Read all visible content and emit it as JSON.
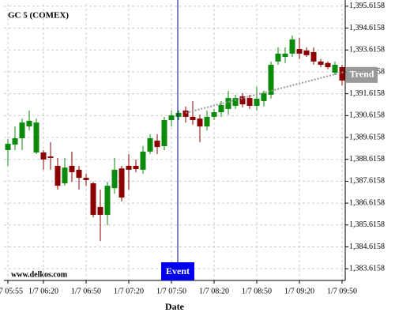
{
  "chart_data": {
    "type": "candlestick",
    "title": "GC 5 (COMEX)",
    "watermark": "www.delkos.com",
    "x_label": "Date",
    "categories": [
      "1/7 05:55",
      null,
      null,
      null,
      null,
      "1/7 06:20",
      null,
      null,
      null,
      null,
      null,
      "1/7 06:50",
      null,
      null,
      null,
      null,
      null,
      "1/7 07:20",
      null,
      null,
      null,
      null,
      null,
      "1/7 07:50",
      null,
      null,
      null,
      null,
      null,
      "1/7 08:20",
      null,
      null,
      null,
      null,
      null,
      "1/7 08:50",
      null,
      null,
      null,
      null,
      null,
      "1/7 09:20",
      null,
      null,
      null,
      null,
      null,
      "1/7 09:50"
    ],
    "open": [
      1389.04,
      1389.29,
      1389.58,
      1390.12,
      1388.93,
      1388.93,
      1388.75,
      1388.32,
      1387.52,
      1388.32,
      1388.14,
      1387.77,
      1387.52,
      1386.44,
      1386.08,
      1387.3,
      1388.2,
      1388.32,
      1388.32,
      1388.14,
      1388.97,
      1389.47,
      1389.22,
      1390.41,
      1390.56,
      1390.85,
      1390.56,
      1390.48,
      1390.12,
      1390.56,
      1390.77,
      1390.92,
      1391.06,
      1391.5,
      1391.42,
      1391.06,
      1391.28,
      1391.57,
      1393.09,
      1393.3,
      1393.45,
      1393.66,
      1393.59,
      1393.52,
      1393.09,
      1393.02,
      1392.58,
      1392.83
    ],
    "high": [
      1389.54,
      1390.12,
      1390.48,
      1390.85,
      1390.48,
      1389.04,
      1389.4,
      1388.68,
      1388.68,
      1388.97,
      1388.32,
      1387.96,
      1387.59,
      1387.23,
      1387.59,
      1388.68,
      1388.32,
      1388.86,
      1388.61,
      1389.22,
      1389.76,
      1389.76,
      1390.56,
      1390.85,
      1390.85,
      1391.03,
      1391.28,
      1390.66,
      1390.85,
      1390.92,
      1391.28,
      1391.75,
      1391.57,
      1391.64,
      1391.57,
      1391.93,
      1391.75,
      1393.09,
      1393.74,
      1393.74,
      1394.28,
      1394.17,
      1393.74,
      1393.74,
      1393.2,
      1393.09,
      1393.09,
      1392.94
    ],
    "low": [
      1388.32,
      1389.04,
      1389.04,
      1389.94,
      1388.86,
      1388.14,
      1388.14,
      1387.23,
      1387.41,
      1387.59,
      1387.23,
      1387.41,
      1385.97,
      1384.88,
      1385.61,
      1387.05,
      1386.69,
      1387.23,
      1388.03,
      1387.96,
      1388.86,
      1388.86,
      1389.04,
      1390.12,
      1390.41,
      1390.3,
      1390.2,
      1389.4,
      1389.94,
      1390.41,
      1390.56,
      1390.66,
      1390.92,
      1390.99,
      1390.92,
      1390.85,
      1391.03,
      1391.39,
      1392.94,
      1393.02,
      1393.3,
      1393.2,
      1393.3,
      1392.94,
      1392.83,
      1392.74,
      1392.47,
      1392.0
    ],
    "close": [
      1389.33,
      1389.58,
      1390.3,
      1390.38,
      1390.3,
      1388.61,
      1388.68,
      1387.41,
      1388.24,
      1388.03,
      1387.77,
      1387.67,
      1386.08,
      1386.08,
      1387.41,
      1388.14,
      1386.87,
      1388.14,
      1388.17,
      1388.97,
      1389.58,
      1389.18,
      1390.41,
      1390.63,
      1390.74,
      1390.56,
      1390.41,
      1390.12,
      1390.56,
      1390.77,
      1391.1,
      1391.42,
      1391.42,
      1391.13,
      1391.06,
      1391.39,
      1391.64,
      1392.94,
      1393.45,
      1393.45,
      1394.1,
      1393.45,
      1393.38,
      1393.09,
      1392.94,
      1392.83,
      1392.94,
      1392.22
    ],
    "up_color": "#0c8a0c",
    "down_color": "#8b0000",
    "ylim": [
      1383.08,
      1395.72
    ],
    "yticks": [
      {
        "value": 1383.6158,
        "label": "1,383.6158"
      },
      {
        "value": 1384.6158,
        "label": "1,384.6158"
      },
      {
        "value": 1385.6158,
        "label": "1,385.6158"
      },
      {
        "value": 1386.6158,
        "label": "1,386.6158"
      },
      {
        "value": 1387.6158,
        "label": "1,387.6158"
      },
      {
        "value": 1388.6158,
        "label": "1,388.6158"
      },
      {
        "value": 1389.6158,
        "label": "1,389.6158"
      },
      {
        "value": 1390.6158,
        "label": "1,390.6158"
      },
      {
        "value": 1391.6158,
        "label": "1,391.6158"
      },
      {
        "value": 1392.6158,
        "label": "1,392.6158"
      },
      {
        "value": 1393.6158,
        "label": "1,393.6158"
      },
      {
        "value": 1394.6158,
        "label": "1,394.6158"
      },
      {
        "value": 1395.6158,
        "label": "1,395.6158"
      }
    ],
    "grid": true,
    "event": {
      "label": "Event",
      "index": 24,
      "color": "#0000ee"
    },
    "trend": {
      "name": "Trend",
      "x": [
        25,
        47.4
      ],
      "values": [
        1390.74,
        1392.62
      ],
      "color": "#999999"
    }
  }
}
